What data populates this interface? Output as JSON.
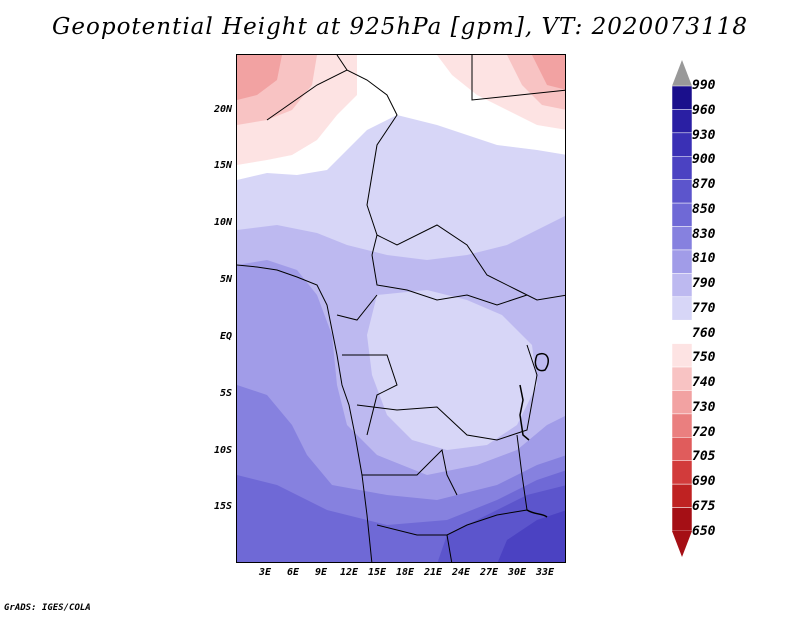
{
  "title": "Geopotential Height at 925hPa [gpm], VT: 2020073118",
  "credit": "GrADS: IGES/COLA",
  "map": {
    "type": "filled-contour-map",
    "region": "Central Africa",
    "variable": "Geopotential Height at 925hPa",
    "units": "gpm",
    "valid_time": "2020073118",
    "lat_labels": [
      "20N",
      "15N",
      "10N",
      "5N",
      "EQ",
      "5S",
      "10S",
      "15S"
    ],
    "lon_labels": [
      "3E",
      "6E",
      "9E",
      "12E",
      "15E",
      "18E",
      "21E",
      "24E",
      "27E",
      "30E",
      "33E"
    ]
  },
  "colorbar": {
    "levels": [
      "990",
      "960",
      "930",
      "900",
      "870",
      "850",
      "830",
      "810",
      "790",
      "770",
      "760",
      "750",
      "740",
      "730",
      "720",
      "705",
      "690",
      "675",
      "650"
    ],
    "colors": [
      "#1a0f8c",
      "#2a1fa3",
      "#3a30b5",
      "#4b42c2",
      "#5c55cc",
      "#6f69d6",
      "#8681df",
      "#a19ce8",
      "#bdb9f0",
      "#d7d6f7",
      "#ffffff",
      "#fde3e3",
      "#f8c3c3",
      "#f2a2a2",
      "#ea7f7f",
      "#e05c5c",
      "#d23b3b",
      "#bf2222",
      "#a50f15"
    ],
    "top_arrow_color": "#999999",
    "bottom_arrow_color": "#a50f15"
  }
}
